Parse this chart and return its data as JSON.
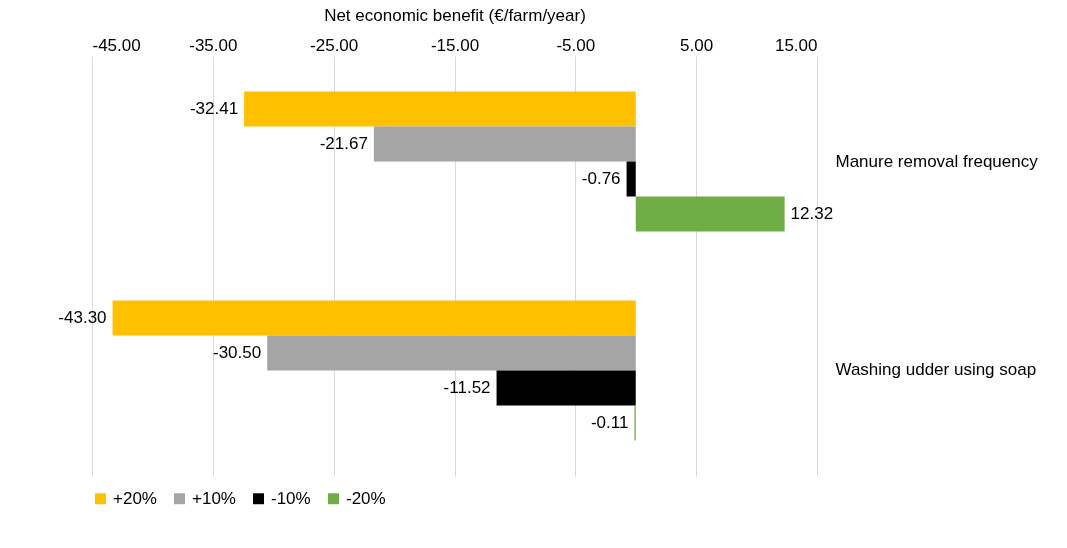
{
  "chart_data": {
    "type": "bar",
    "orientation": "horizontal",
    "xlabel": "Net economic benefit (€/farm/year)",
    "categories": [
      "Manure removal frequency",
      "Washing udder using soap"
    ],
    "series": [
      {
        "name": "+20%",
        "color": "#ffc000",
        "values": [
          -32.41,
          -43.3
        ],
        "value_labels": [
          "-32.41",
          "-43.30"
        ]
      },
      {
        "name": "+10%",
        "color": "#a5a5a5",
        "values": [
          -21.67,
          -30.5
        ],
        "value_labels": [
          "-21.67",
          "-30.50"
        ]
      },
      {
        "name": "-10%",
        "color": "#000000",
        "values": [
          -0.76,
          -11.52
        ],
        "value_labels": [
          "-0.76",
          "-11.52"
        ]
      },
      {
        "name": "-20%",
        "color": "#70ad47",
        "values": [
          12.32,
          -0.11
        ],
        "value_labels": [
          "12.32",
          "-0.11"
        ]
      }
    ],
    "xlim": [
      -45,
      15
    ],
    "xticks": [
      {
        "value": -45,
        "label": "-45.00"
      },
      {
        "value": -35,
        "label": "-35.00"
      },
      {
        "value": -25,
        "label": "-25.00"
      },
      {
        "value": -15,
        "label": "-15.00"
      },
      {
        "value": -5,
        "label": "-5.00"
      },
      {
        "value": 5,
        "label": "5.00"
      },
      {
        "value": 15,
        "label": "15.00"
      }
    ],
    "grid": "x",
    "legend": "bottom"
  }
}
